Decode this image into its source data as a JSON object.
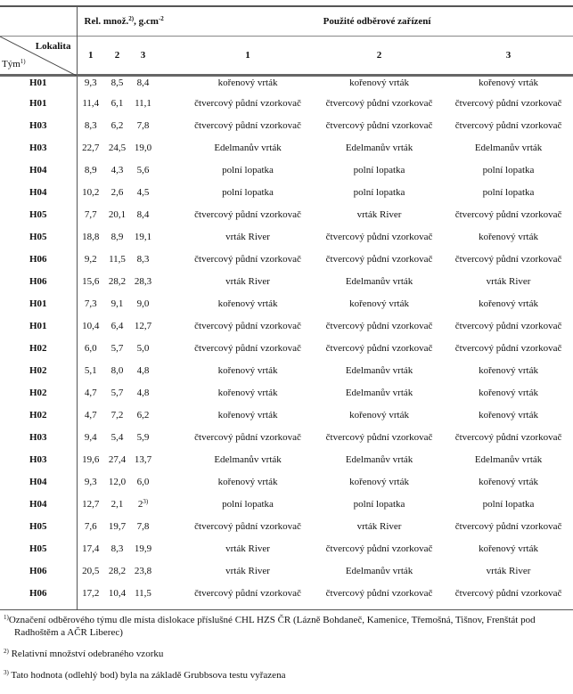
{
  "header": {
    "rel_label": "Rel. množ.",
    "rel_sup": "2)",
    "rel_unit": ", g.cm",
    "rel_unit_sup": "-2",
    "device_label": "Použité odběrové zařízení",
    "lokalita_label": "Lokalita",
    "tym_label": "Tým",
    "tym_sup": "1)",
    "num_cols": [
      "1",
      "2",
      "3"
    ],
    "device_cols": [
      "1",
      "2",
      "3"
    ]
  },
  "rows": [
    {
      "team": "H01",
      "v": [
        "9,3",
        "8,5",
        "8,4"
      ],
      "d": [
        "kořenový vrták",
        "kořenový vrták",
        "kořenový vrták"
      ]
    },
    {
      "team": "H01",
      "v": [
        "11,4",
        "6,1",
        "11,1"
      ],
      "d": [
        "čtvercový půdní vzorkovač",
        "čtvercový půdní vzorkovač",
        "čtvercový půdní vzorkovač"
      ]
    },
    {
      "team": "H03",
      "v": [
        "8,3",
        "6,2",
        "7,8"
      ],
      "d": [
        "čtvercový půdní vzorkovač",
        "čtvercový půdní vzorkovač",
        "čtvercový půdní vzorkovač"
      ]
    },
    {
      "team": "H03",
      "v": [
        "22,7",
        "24,5",
        "19,0"
      ],
      "d": [
        "Edelmanův vrták",
        "Edelmanův vrták",
        "Edelmanův vrták"
      ]
    },
    {
      "team": "H04",
      "v": [
        "8,9",
        "4,3",
        "5,6"
      ],
      "d": [
        "polní lopatka",
        "polní lopatka",
        "polní lopatka"
      ]
    },
    {
      "team": "H04",
      "v": [
        "10,2",
        "2,6",
        "4,5"
      ],
      "d": [
        "polní lopatka",
        "polní lopatka",
        "polní lopatka"
      ]
    },
    {
      "team": "H05",
      "v": [
        "7,7",
        "20,1",
        "8,4"
      ],
      "d": [
        "čtvercový půdní vzorkovač",
        "vrták River",
        "čtvercový půdní vzorkovač"
      ]
    },
    {
      "team": "H05",
      "v": [
        "18,8",
        "8,9",
        "19,1"
      ],
      "d": [
        "vrták River",
        "čtvercový půdní vzorkovač",
        "kořenový vrták"
      ]
    },
    {
      "team": "H06",
      "v": [
        "9,2",
        "11,5",
        "8,3"
      ],
      "d": [
        "čtvercový půdní vzorkovač",
        "čtvercový půdní vzorkovač",
        "čtvercový půdní vzorkovač"
      ]
    },
    {
      "team": "H06",
      "v": [
        "15,6",
        "28,2",
        "28,3"
      ],
      "d": [
        "vrták River",
        "Edelmanův vrták",
        "vrták River"
      ]
    },
    {
      "team": "H01",
      "v": [
        "7,3",
        "9,1",
        "9,0"
      ],
      "d": [
        "kořenový vrták",
        "kořenový vrták",
        "kořenový vrták"
      ]
    },
    {
      "team": "H01",
      "v": [
        "10,4",
        "6,4",
        "12,7"
      ],
      "d": [
        "čtvercový půdní vzorkovač",
        "čtvercový půdní vzorkovač",
        "čtvercový půdní vzorkovač"
      ]
    },
    {
      "team": "H02",
      "v": [
        "6,0",
        "5,7",
        "5,0"
      ],
      "d": [
        "čtvercový půdní vzorkovač",
        "čtvercový půdní vzorkovač",
        "čtvercový půdní vzorkovač"
      ]
    },
    {
      "team": "H02",
      "v": [
        "5,1",
        "8,0",
        "4,8"
      ],
      "d": [
        "kořenový vrták",
        "Edelmanův vrták",
        "kořenový vrták"
      ]
    },
    {
      "team": "H02",
      "v": [
        "4,7",
        "5,7",
        "4,8"
      ],
      "d": [
        "kořenový vrták",
        "Edelmanův vrták",
        "kořenový vrták"
      ]
    },
    {
      "team": "H02",
      "v": [
        "4,7",
        "7,2",
        "6,2"
      ],
      "d": [
        "kořenový vrták",
        "kořenový vrták",
        "kořenový vrták"
      ]
    },
    {
      "team": "H03",
      "v": [
        "9,4",
        "5,4",
        "5,9"
      ],
      "d": [
        "čtvercový půdní vzorkovač",
        "čtvercový půdní vzorkovač",
        "čtvercový půdní vzorkovač"
      ]
    },
    {
      "team": "H03",
      "v": [
        "19,6",
        "27,4",
        "13,7"
      ],
      "d": [
        "Edelmanův vrták",
        "Edelmanův vrták",
        "Edelmanův vrták"
      ]
    },
    {
      "team": "H04",
      "v": [
        "9,3",
        "12,0",
        "6,0"
      ],
      "d": [
        "kořenový vrták",
        "kořenový vrták",
        "kořenový vrták"
      ]
    },
    {
      "team": "H04",
      "v": [
        "12,7",
        "2,1",
        "2"
      ],
      "sup3": "3)",
      "d": [
        "polní lopatka",
        "polní lopatka",
        "polní lopatka"
      ]
    },
    {
      "team": "H05",
      "v": [
        "7,6",
        "19,7",
        "7,8"
      ],
      "d": [
        "čtvercový půdní vzorkovač",
        "vrták River",
        "čtvercový půdní vzorkovač"
      ]
    },
    {
      "team": "H05",
      "v": [
        "17,4",
        "8,3",
        "19,9"
      ],
      "d": [
        "vrták River",
        "čtvercový půdní vzorkovač",
        "kořenový vrták"
      ]
    },
    {
      "team": "H06",
      "v": [
        "20,5",
        "28,2",
        "23,8"
      ],
      "d": [
        "vrták River",
        "Edelmanův vrták",
        "vrták River"
      ]
    },
    {
      "team": "H06",
      "v": [
        "17,2",
        "10,4",
        "11,5"
      ],
      "d": [
        "čtvercový půdní vzorkovač",
        "čtvercový půdní vzorkovač",
        "čtvercový půdní vzorkovač"
      ]
    }
  ],
  "footnotes": [
    {
      "mark": "1)",
      "text": "Označení odběrového týmu dle místa dislokace příslušné CHL HZS ČR (Lázně Bohdaneč, Kamenice, Třemošná, Tišnov, Frenštát pod",
      "text2": "Radhoštěm a AČR Liberec)"
    },
    {
      "mark": "2)",
      "text": "Relativní množství odebraného vzorku"
    },
    {
      "mark": "3)",
      "text": "Tato hodnota (odlehlý bod) byla na základě Grubbsova testu vyřazena"
    }
  ]
}
